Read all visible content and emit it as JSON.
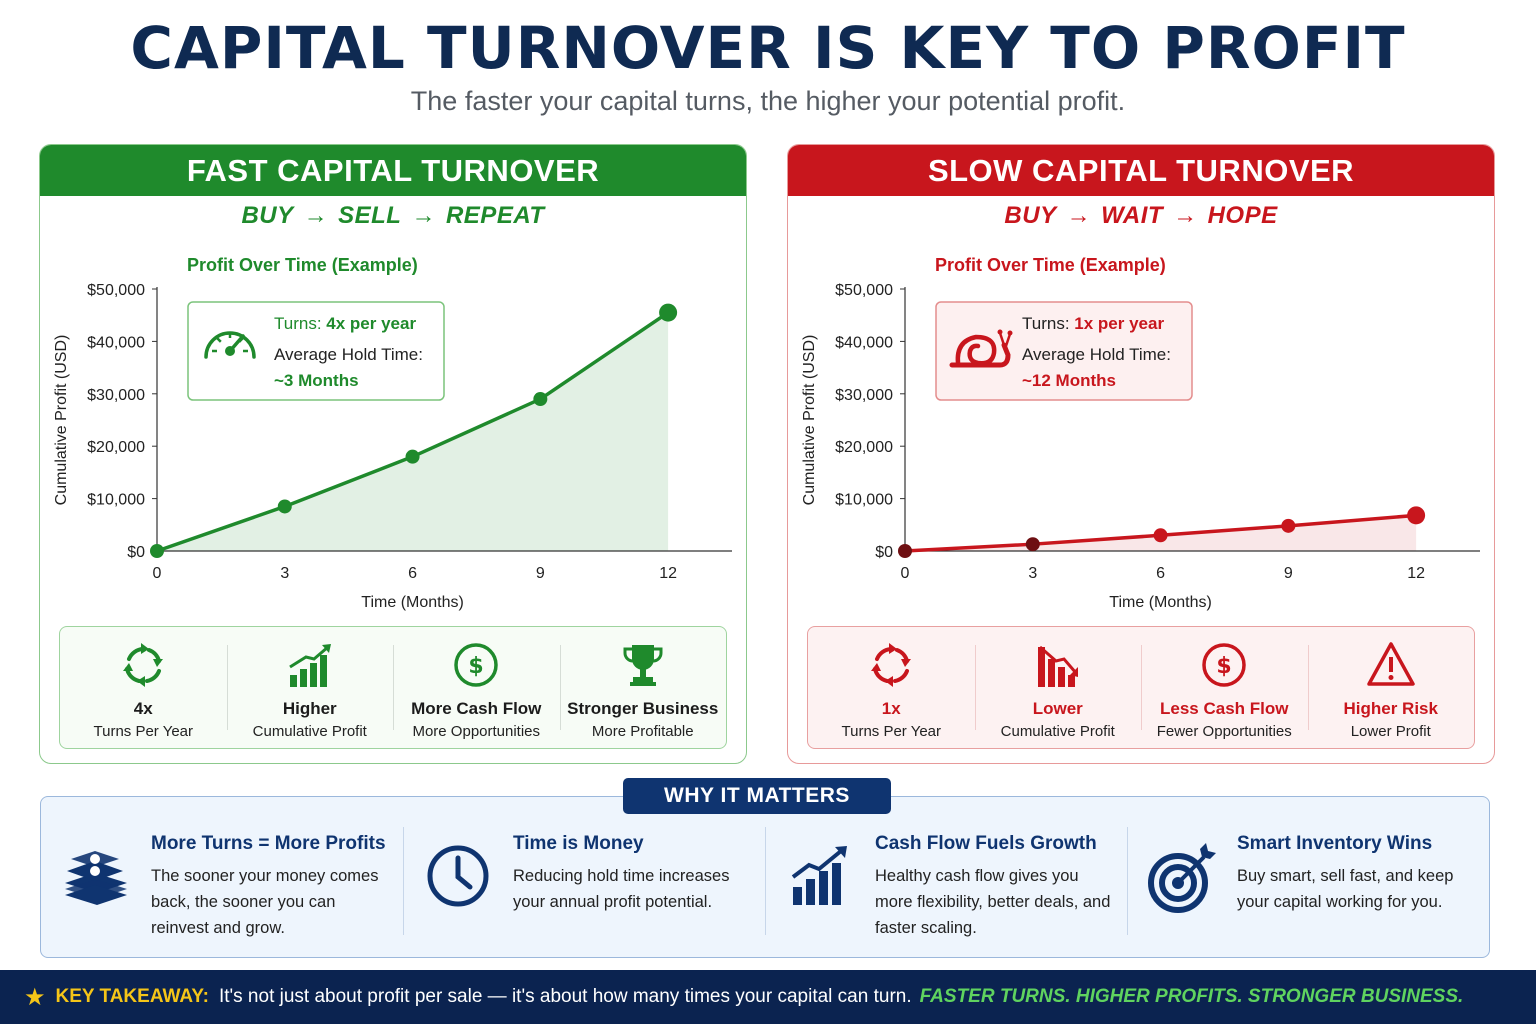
{
  "title": "CAPITAL TURNOVER IS KEY TO PROFIT",
  "subtitle": "The faster your capital turns, the higher your potential profit.",
  "colors": {
    "fast": "#1f8a2c",
    "slow": "#c8161d",
    "navy": "#0f2a52"
  },
  "fast": {
    "header": "FAST CAPITAL TURNOVER",
    "flow": [
      "BUY",
      "SELL",
      "REPEAT"
    ],
    "info": {
      "turns_label": "Turns:",
      "turns_value": "4x per year",
      "hold_label": "Average Hold Time:",
      "hold_value": "~3 Months",
      "icon": "speedometer-icon"
    },
    "stats": [
      {
        "icon": "cycle-arrows-icon",
        "title": "4x",
        "sub": "Turns Per Year"
      },
      {
        "icon": "bar-chart-up-icon",
        "title": "Higher",
        "sub": "Cumulative Profit"
      },
      {
        "icon": "dollar-circle-icon",
        "title": "More Cash Flow",
        "sub": "More Opportunities"
      },
      {
        "icon": "trophy-icon",
        "title": "Stronger Business",
        "sub": "More Profitable"
      }
    ]
  },
  "slow": {
    "header": "SLOW CAPITAL TURNOVER",
    "flow": [
      "BUY",
      "WAIT",
      "HOPE"
    ],
    "info": {
      "turns_label": "Turns:",
      "turns_value": "1x per year",
      "hold_label": "Average Hold Time:",
      "hold_value": "~12 Months",
      "icon": "snail-icon"
    },
    "stats": [
      {
        "icon": "cycle-arrows-icon",
        "title": "1x",
        "sub": "Turns Per Year"
      },
      {
        "icon": "bar-chart-down-icon",
        "title": "Lower",
        "sub": "Cumulative Profit"
      },
      {
        "icon": "dollar-circle-icon",
        "title": "Less Cash Flow",
        "sub": "Fewer Opportunities"
      },
      {
        "icon": "warning-icon",
        "title": "Higher Risk",
        "sub": "Lower Profit"
      }
    ]
  },
  "chart_data": [
    {
      "type": "area",
      "title": "Profit Over Time (Example)",
      "xlabel": "Time (Months)",
      "ylabel": "Cumulative Profit (USD)",
      "x": [
        0,
        3,
        6,
        9,
        12
      ],
      "xticks": [
        "0",
        "3",
        "6",
        "9",
        "12"
      ],
      "yticks": [
        "$0",
        "$10,000",
        "$20,000",
        "$30,000",
        "$40,000",
        "$50,000"
      ],
      "ylim": [
        0,
        50000
      ],
      "xlim": [
        0,
        13.5
      ],
      "series": [
        {
          "values": [
            0,
            8500,
            18000,
            29000,
            45500
          ],
          "color": "#1f8a2c"
        }
      ],
      "grid": false
    },
    {
      "type": "area",
      "title": "Profit Over Time (Example)",
      "xlabel": "Time (Months)",
      "ylabel": "Cumulative Profit (USD)",
      "x": [
        0,
        3,
        6,
        9,
        12
      ],
      "xticks": [
        "0",
        "3",
        "6",
        "9",
        "12"
      ],
      "yticks": [
        "$0",
        "$10,000",
        "$20,000",
        "$30,000",
        "$40,000",
        "$50,000"
      ],
      "ylim": [
        0,
        50000
      ],
      "xlim": [
        0,
        13.5
      ],
      "series": [
        {
          "values": [
            0,
            1300,
            3000,
            4800,
            6800
          ],
          "color": "#c8161d"
        }
      ],
      "grid": false
    }
  ],
  "why": {
    "badge": "WHY IT MATTERS",
    "items": [
      {
        "icon": "money-stack-icon",
        "title": "More Turns = More Profits",
        "desc": "The sooner your money comes back, the sooner you can reinvest and grow."
      },
      {
        "icon": "clock-icon",
        "title": "Time is Money",
        "desc": "Reducing hold time increases your annual profit potential."
      },
      {
        "icon": "growth-chart-icon",
        "title": "Cash Flow Fuels Growth",
        "desc": "Healthy cash flow gives you more flexibility, better deals, and faster scaling."
      },
      {
        "icon": "target-icon",
        "title": "Smart Inventory Wins",
        "desc": "Buy smart, sell fast, and keep your capital working for you."
      }
    ]
  },
  "takeaway": {
    "label": "KEY TAKEAWAY:",
    "text": "It's not just about profit per sale — it's about how many times your capital can turn.",
    "emphasis": "FASTER TURNS. HIGHER PROFITS. STRONGER BUSINESS."
  }
}
